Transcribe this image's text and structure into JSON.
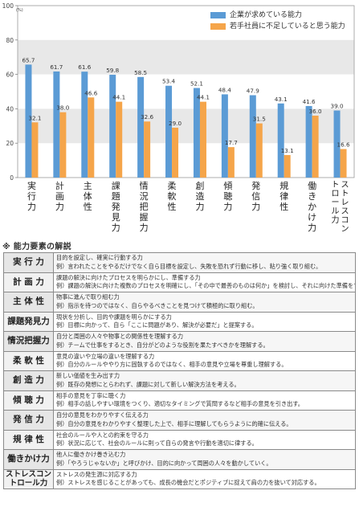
{
  "chart_data": {
    "type": "bar",
    "categories": [
      "実行力",
      "計画力",
      "主体性",
      "課題発見力",
      "情況把握力",
      "柔軟性",
      "創造力",
      "傾聴力",
      "発信力",
      "規律性",
      "働きかけ力",
      "ストレスコントロール力"
    ],
    "series": [
      {
        "name": "企業が求めている能力",
        "color": "#5b9bd5",
        "values": [
          65.7,
          61.7,
          61.6,
          59.8,
          58.5,
          53.4,
          52.1,
          48.4,
          47.9,
          43.1,
          41.6,
          39.0
        ]
      },
      {
        "name": "若手社員に不足していると思う能力",
        "color": "#f5a54a",
        "values": [
          32.1,
          38.0,
          46.6,
          44.1,
          32.6,
          29.0,
          44.1,
          17.7,
          31.5,
          13.1,
          36.0,
          16.6
        ]
      }
    ],
    "ylim": [
      0,
      100
    ],
    "yticks": [
      0,
      20,
      40,
      60,
      80,
      100
    ],
    "yunit": "(%)",
    "xlabel": "",
    "ylabel": "",
    "title": "",
    "legend_position": "top-right",
    "grid_bands": true
  },
  "section_title": "※ 能力要素の解説",
  "terms": [
    {
      "term": "実 行 力",
      "def1": "目的を設定し、確実に行動する力",
      "def2": "例）言われたことをやるだけでなく自ら目標を設定し、失敗を恐れず行動に移し、粘り強く取り組む。"
    },
    {
      "term": "計 画 力",
      "def1": "課題の解決に向けたプロセスを明らかにし、準備する力",
      "def2": "例）課題の解決に向けた複数のプロセスを明確にし、「その中で最善のものは何か」を検討し、それに向けた準備をする。"
    },
    {
      "term": "主 体 性",
      "def1": "物事に進んで取り組む力",
      "def2": "例）指示を待つのではなく、自らやるべきことを見つけて積極的に取り組む。"
    },
    {
      "term": "課題発見力",
      "def1": "現状を分析し、目的や課題を明らかにする力",
      "def2": "例）目標に向かって、自ら「ここに問題があり、解決が必要だ」と提案する。"
    },
    {
      "term": "情況把握力",
      "def1": "自分と周囲の人々や物事との関係性を理解する力",
      "def2": "例）チームで仕事をするとき、自分がどのような役割を果たすべきかを理解する。"
    },
    {
      "term": "柔 軟 性",
      "def1": "意見の違いや立場の違いを理解する力",
      "def2": "例）自分のルールややり方に固執するのではなく、相手の意見や立場を尊重し理解する。"
    },
    {
      "term": "創 造 力",
      "def1": "新しい価値を生み出す力",
      "def2": "例）既存の発想にとらわれず、課題に対して新しい解決方法を考える。"
    },
    {
      "term": "傾 聴 力",
      "def1": "相手の意見を丁寧に聴く力",
      "def2": "例）相手の話しやすい環境をつくり、適切なタイミングで質問するなど相手の意見を引き出す。"
    },
    {
      "term": "発 信 力",
      "def1": "自分の意見をわかりやすく伝える力",
      "def2": "例）自分の意見をわかりやすく整理した上で、相手に理解してもらうように的確に伝える。"
    },
    {
      "term": "規 律 性",
      "def1": "社会のルールや人との約束を守る力",
      "def2": "例）状況に応じて、社会のルールに則って自らの発言や行動を適切に律する。"
    },
    {
      "term": "働きかけ力",
      "def1": "他人に働きかけ巻き込む力",
      "def2": "例）「やろうじゃないか」と呼びかけ、目的に向かって周囲の人々を動かしていく。"
    },
    {
      "term": "ストレスコン\nトロール力",
      "def1": "ストレスの発生源に対応する力",
      "def2": "例）ストレスを感じることがあっても、成長の機会だとポジティブに捉えて肩の力を抜いて対応する。"
    }
  ]
}
